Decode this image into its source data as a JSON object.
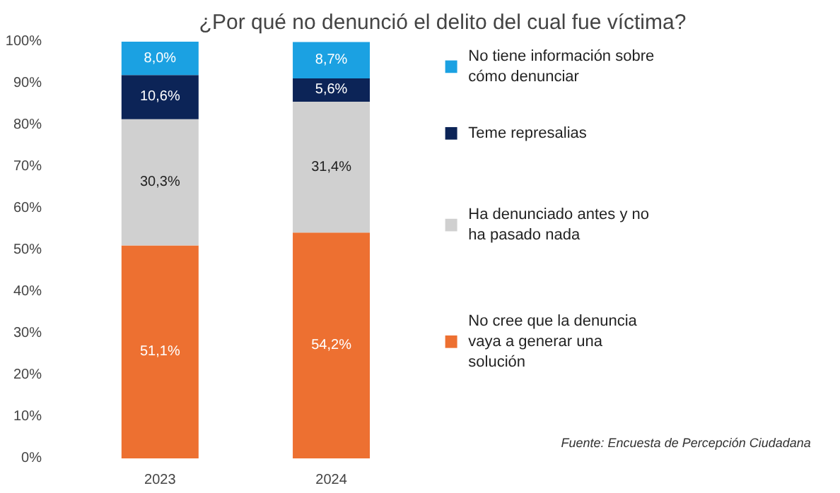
{
  "chart_data": {
    "type": "bar",
    "stacked": true,
    "title": "¿Por qué no denunció el delito del cual fue víctima?",
    "categories": [
      "2023",
      "2024"
    ],
    "series": [
      {
        "name": "No cree que la denuncia vaya a generar una solución",
        "color": "#ed7031",
        "values": [
          51.1,
          54.2
        ],
        "value_labels": [
          "51,1%",
          "54,2%"
        ]
      },
      {
        "name": "Ha denunciado antes y no ha pasado nada",
        "color": "#d0d0d0",
        "values": [
          30.3,
          31.4
        ],
        "value_labels": [
          "30,3%",
          "31,4%"
        ]
      },
      {
        "name": "Teme represalias",
        "color": "#0c2457",
        "values": [
          10.6,
          5.6
        ],
        "value_labels": [
          "10,6%",
          "5,6%"
        ]
      },
      {
        "name": "No tiene información sobre cómo denunciar",
        "color": "#1ba1e2",
        "values": [
          8.0,
          8.7
        ],
        "value_labels": [
          "8,0%",
          "8,7%"
        ]
      }
    ],
    "ylim": [
      0,
      100
    ],
    "yticks": [
      {
        "value": 0,
        "label": "0%"
      },
      {
        "value": 10,
        "label": "10%"
      },
      {
        "value": 20,
        "label": "20%"
      },
      {
        "value": 30,
        "label": "30%"
      },
      {
        "value": 40,
        "label": "40%"
      },
      {
        "value": 50,
        "label": "50%"
      },
      {
        "value": 60,
        "label": "60%"
      },
      {
        "value": 70,
        "label": "70%"
      },
      {
        "value": 80,
        "label": "80%"
      },
      {
        "value": 90,
        "label": "90%"
      },
      {
        "value": 100,
        "label": "100%"
      }
    ],
    "grid": false,
    "legend": "right",
    "annotations": [
      "Fuente: Encuesta de Percepción Ciudadana"
    ]
  }
}
